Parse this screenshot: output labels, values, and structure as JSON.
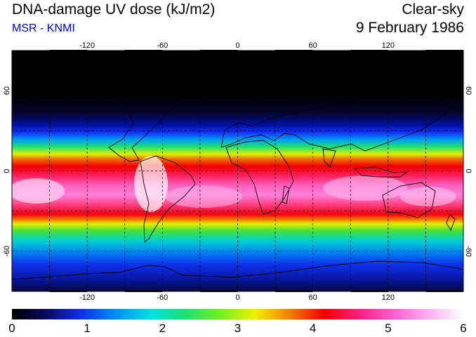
{
  "title": "DNA-damage UV dose (kJ/m2)",
  "subtitle": "MSR - KNMI",
  "condition": "Clear-sky",
  "date": "9 February 1986",
  "map": {
    "projection": "equirectangular",
    "lon_range": [
      -180,
      180
    ],
    "lat_range": [
      -90,
      90
    ],
    "lon_ticks": [
      -120,
      -60,
      0,
      60,
      120
    ],
    "lon_tick_labels": [
      "-120",
      "-60",
      "0",
      "60",
      "120"
    ],
    "lat_ticks": [
      60,
      0,
      -60
    ],
    "lat_tick_labels": [
      "60",
      "0",
      "-60"
    ],
    "grid": "dashed, every 30 degrees",
    "coastlines": true
  },
  "colorbar": {
    "min": 0,
    "max": 6,
    "labels": [
      "0",
      "1",
      "2",
      "3",
      "4",
      "5",
      "6"
    ],
    "colors": [
      "#000000",
      "#0a0a60",
      "#1030e8",
      "#0090f0",
      "#00e0e0",
      "#20e070",
      "#70f020",
      "#f0f000",
      "#f08000",
      "#f00000",
      "#ff2080",
      "#ff60d0",
      "#ffb0f0",
      "#ffffff"
    ]
  },
  "colors": {
    "subtitle": "#0000dd",
    "low_dose": "#000000",
    "high_dose": "#ffffff"
  }
}
